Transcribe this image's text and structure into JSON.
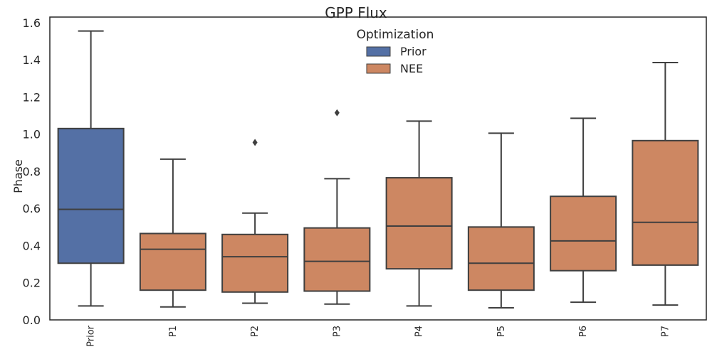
{
  "chart_data": {
    "type": "box",
    "title": "GPP Flux",
    "xlabel": "",
    "ylabel": "Phase",
    "ylim": [
      0.0,
      1.63
    ],
    "yticks": [
      "0.0",
      "0.2",
      "0.4",
      "0.6",
      "0.8",
      "1.0",
      "1.2",
      "1.4",
      "1.6"
    ],
    "grid": false,
    "legend": {
      "title": "Optimization",
      "placement": "top-center",
      "entries": [
        {
          "label": "Prior",
          "color": "#5470a5"
        },
        {
          "label": "NEE",
          "color": "#cd8762"
        }
      ]
    },
    "categories": [
      "Prior",
      "P1",
      "P2",
      "P3",
      "P4",
      "P5",
      "P6",
      "P7"
    ],
    "boxes": [
      {
        "category": "Prior",
        "group": "Prior",
        "whisker_low": 0.075,
        "q1": 0.305,
        "median": 0.595,
        "q3": 1.03,
        "whisker_high": 1.555,
        "outliers": []
      },
      {
        "category": "P1",
        "group": "NEE",
        "whisker_low": 0.07,
        "q1": 0.16,
        "median": 0.38,
        "q3": 0.465,
        "whisker_high": 0.865,
        "outliers": []
      },
      {
        "category": "P2",
        "group": "NEE",
        "whisker_low": 0.09,
        "q1": 0.15,
        "median": 0.34,
        "q3": 0.46,
        "whisker_high": 0.575,
        "outliers": [
          0.955
        ]
      },
      {
        "category": "P3",
        "group": "NEE",
        "whisker_low": 0.085,
        "q1": 0.155,
        "median": 0.315,
        "q3": 0.495,
        "whisker_high": 0.76,
        "outliers": [
          1.115
        ]
      },
      {
        "category": "P4",
        "group": "NEE",
        "whisker_low": 0.075,
        "q1": 0.275,
        "median": 0.505,
        "q3": 0.765,
        "whisker_high": 1.07,
        "outliers": []
      },
      {
        "category": "P5",
        "group": "NEE",
        "whisker_low": 0.065,
        "q1": 0.16,
        "median": 0.305,
        "q3": 0.5,
        "whisker_high": 1.005,
        "outliers": []
      },
      {
        "category": "P6",
        "group": "NEE",
        "whisker_low": 0.095,
        "q1": 0.265,
        "median": 0.425,
        "q3": 0.665,
        "whisker_high": 1.085,
        "outliers": []
      },
      {
        "category": "P7",
        "group": "NEE",
        "whisker_low": 0.08,
        "q1": 0.295,
        "median": 0.525,
        "q3": 0.965,
        "whisker_high": 1.385,
        "outliers": []
      }
    ]
  },
  "colors": {
    "prior": "#5470a5",
    "nee": "#cd8762",
    "line": "#3f3f3f",
    "frame": "#262626"
  }
}
